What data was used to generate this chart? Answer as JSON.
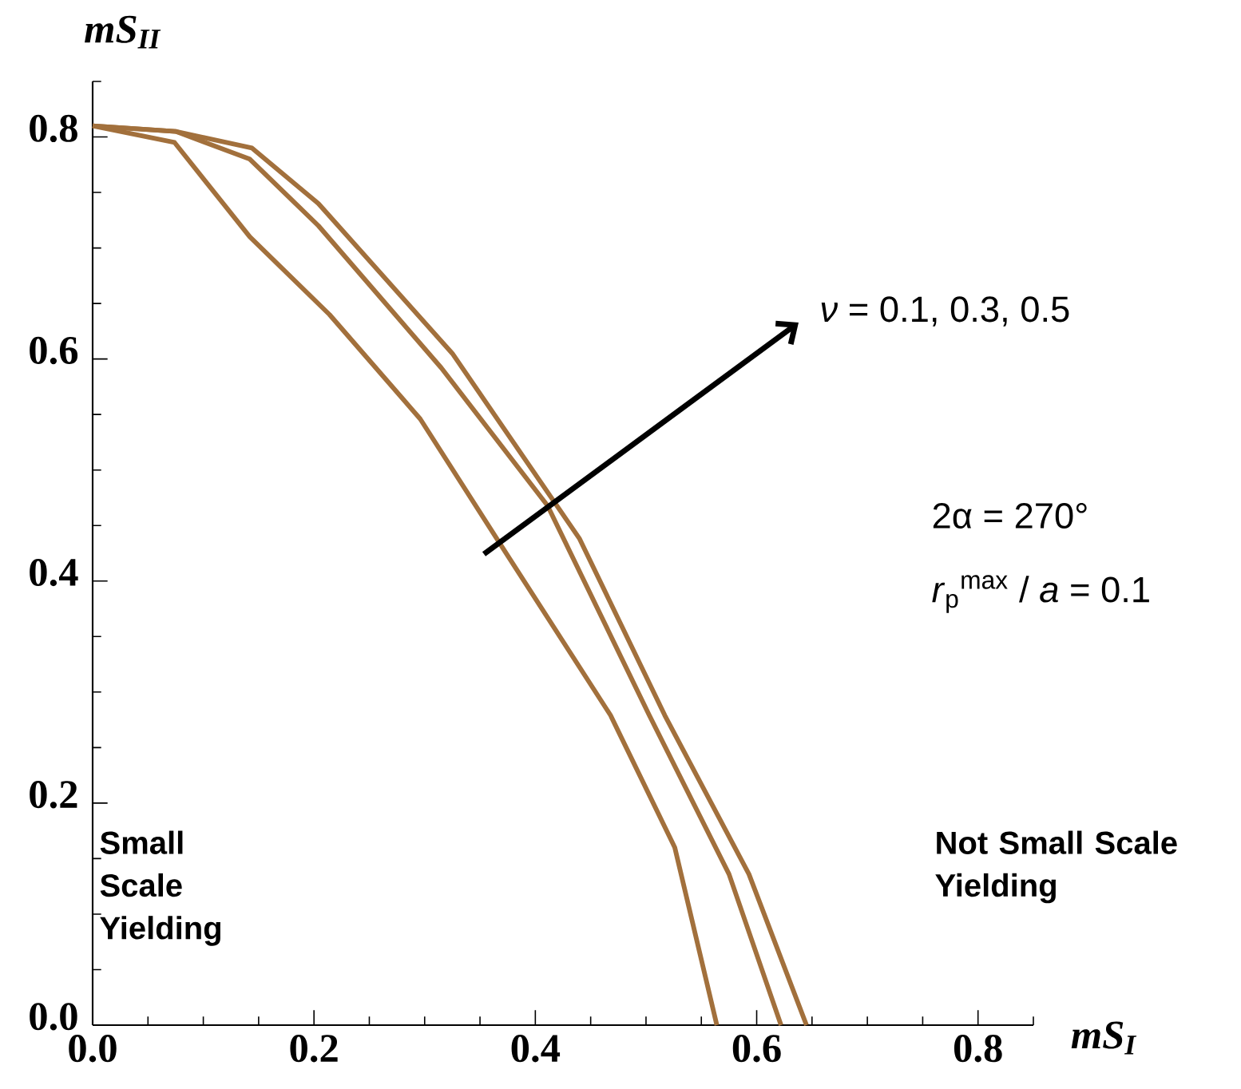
{
  "chart_data": {
    "type": "line",
    "xlabel": "*mS*$_{I}$",
    "ylabel": "*mS*$_{II}$",
    "xlim": [
      0,
      0.85
    ],
    "ylim": [
      0,
      0.85
    ],
    "xticks": [
      {
        "value": 0,
        "label": "0.0"
      },
      {
        "value": 0.05,
        "label": null
      },
      {
        "value": 0.1,
        "label": null
      },
      {
        "value": 0.15,
        "label": null
      },
      0.2,
      {
        "value": 0.25,
        "label": null
      },
      {
        "value": 0.3,
        "label": null
      },
      {
        "value": 0.35,
        "label": null
      },
      0.4,
      {
        "value": 0.45,
        "label": null
      },
      {
        "value": 0.5,
        "label": null
      },
      {
        "value": 0.55,
        "label": null
      },
      0.6,
      {
        "value": 0.65,
        "label": null
      },
      {
        "value": 0.7,
        "label": null
      },
      {
        "value": 0.75,
        "label": null
      },
      0.8,
      {
        "value": 0.85,
        "label": null
      }
    ],
    "yticks": [
      {
        "value": 0,
        "label": "0.0"
      },
      {
        "value": 0.05,
        "label": null
      },
      {
        "value": 0.1,
        "label": null
      },
      {
        "value": 0.15,
        "label": null
      },
      0.2,
      {
        "value": 0.25,
        "label": null
      },
      {
        "value": 0.3,
        "label": null
      },
      {
        "value": 0.35,
        "label": null
      },
      0.4,
      {
        "value": 0.45,
        "label": null
      },
      {
        "value": 0.5,
        "label": null
      },
      {
        "value": 0.55,
        "label": null
      },
      0.6,
      {
        "value": 0.65,
        "label": null
      },
      {
        "value": 0.7,
        "label": null
      },
      {
        "value": 0.75,
        "label": null
      },
      0.8,
      {
        "value": 0.85,
        "label": null
      }
    ],
    "series": [
      {
        "color": "#a2703c",
        "x": [
          0,
          0.074,
          0.142,
          0.214,
          0.296,
          0.373,
          0.468,
          0.526,
          0.564
        ],
        "values": [
          0.81,
          0.795,
          0.71,
          0.64,
          0.546,
          0.426,
          0.279,
          0.16,
          0
        ]
      },
      {
        "color": "#a2703c",
        "x": [
          0,
          0.075,
          0.142,
          0.204,
          0.315,
          0.411,
          0.503,
          0.575,
          0.622
        ],
        "values": [
          0.81,
          0.805,
          0.78,
          0.72,
          0.592,
          0.468,
          0.279,
          0.136,
          0
        ]
      },
      {
        "color": "#a2703c",
        "x": [
          0,
          0.075,
          0.144,
          0.204,
          0.325,
          0.44,
          0.517,
          0.593,
          0.645
        ],
        "values": [
          0.81,
          0.805,
          0.79,
          0.74,
          0.605,
          0.438,
          0.279,
          0.136,
          0
        ]
      }
    ],
    "annotations": [
      "*ν* = 0.1, 0.3, 0.5",
      "2α = 270°",
      "*r*$_{p}$$^{max}$ / *a* = 0.1",
      "**Small Scale Yielding**",
      "**Not Small Scale Yielding**"
    ]
  }
}
